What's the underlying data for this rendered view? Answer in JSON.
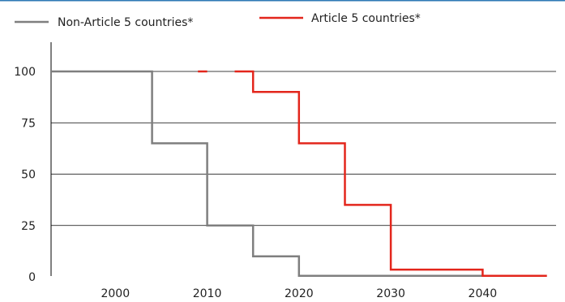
{
  "legend": {
    "non_article5": "Non-Article 5 countries*",
    "article5": "Article 5 countries*"
  },
  "colors": {
    "non_article5": "#7f7f7f",
    "article5": "#e3261c",
    "top_rule": "#2f7ab5",
    "gridline": "#000000"
  },
  "chart_data": {
    "type": "line",
    "step": true,
    "title": "",
    "xlabel": "",
    "ylabel": "",
    "xlim": [
      1993,
      2048
    ],
    "ylim": [
      0,
      100
    ],
    "xticks": [
      2000,
      2010,
      2020,
      2030,
      2040
    ],
    "yticks": [
      0,
      25,
      50,
      75,
      100
    ],
    "grid": "horizontal",
    "legend_position": "top",
    "series": [
      {
        "name": "Non-Article 5 countries*",
        "color": "#7f7f7f",
        "x": [
          1993,
          2004,
          2004,
          2010,
          2010,
          2015,
          2015,
          2020,
          2020,
          2040
        ],
        "y": [
          100,
          100,
          65,
          65,
          25,
          25,
          10,
          10,
          0.5,
          0.5
        ]
      },
      {
        "name": "Article 5 countries*",
        "color": "#e3261c",
        "segments": [
          {
            "x": [
              2009,
              2010
            ],
            "y": [
              100,
              100
            ]
          },
          {
            "x": [
              2013,
              2015,
              2015,
              2020,
              2020,
              2025,
              2025,
              2030,
              2030,
              2040,
              2040,
              2047
            ],
            "y": [
              100,
              100,
              90,
              90,
              65,
              65,
              35,
              35,
              3.5,
              3.5,
              0.5,
              0.5
            ]
          }
        ]
      }
    ]
  }
}
